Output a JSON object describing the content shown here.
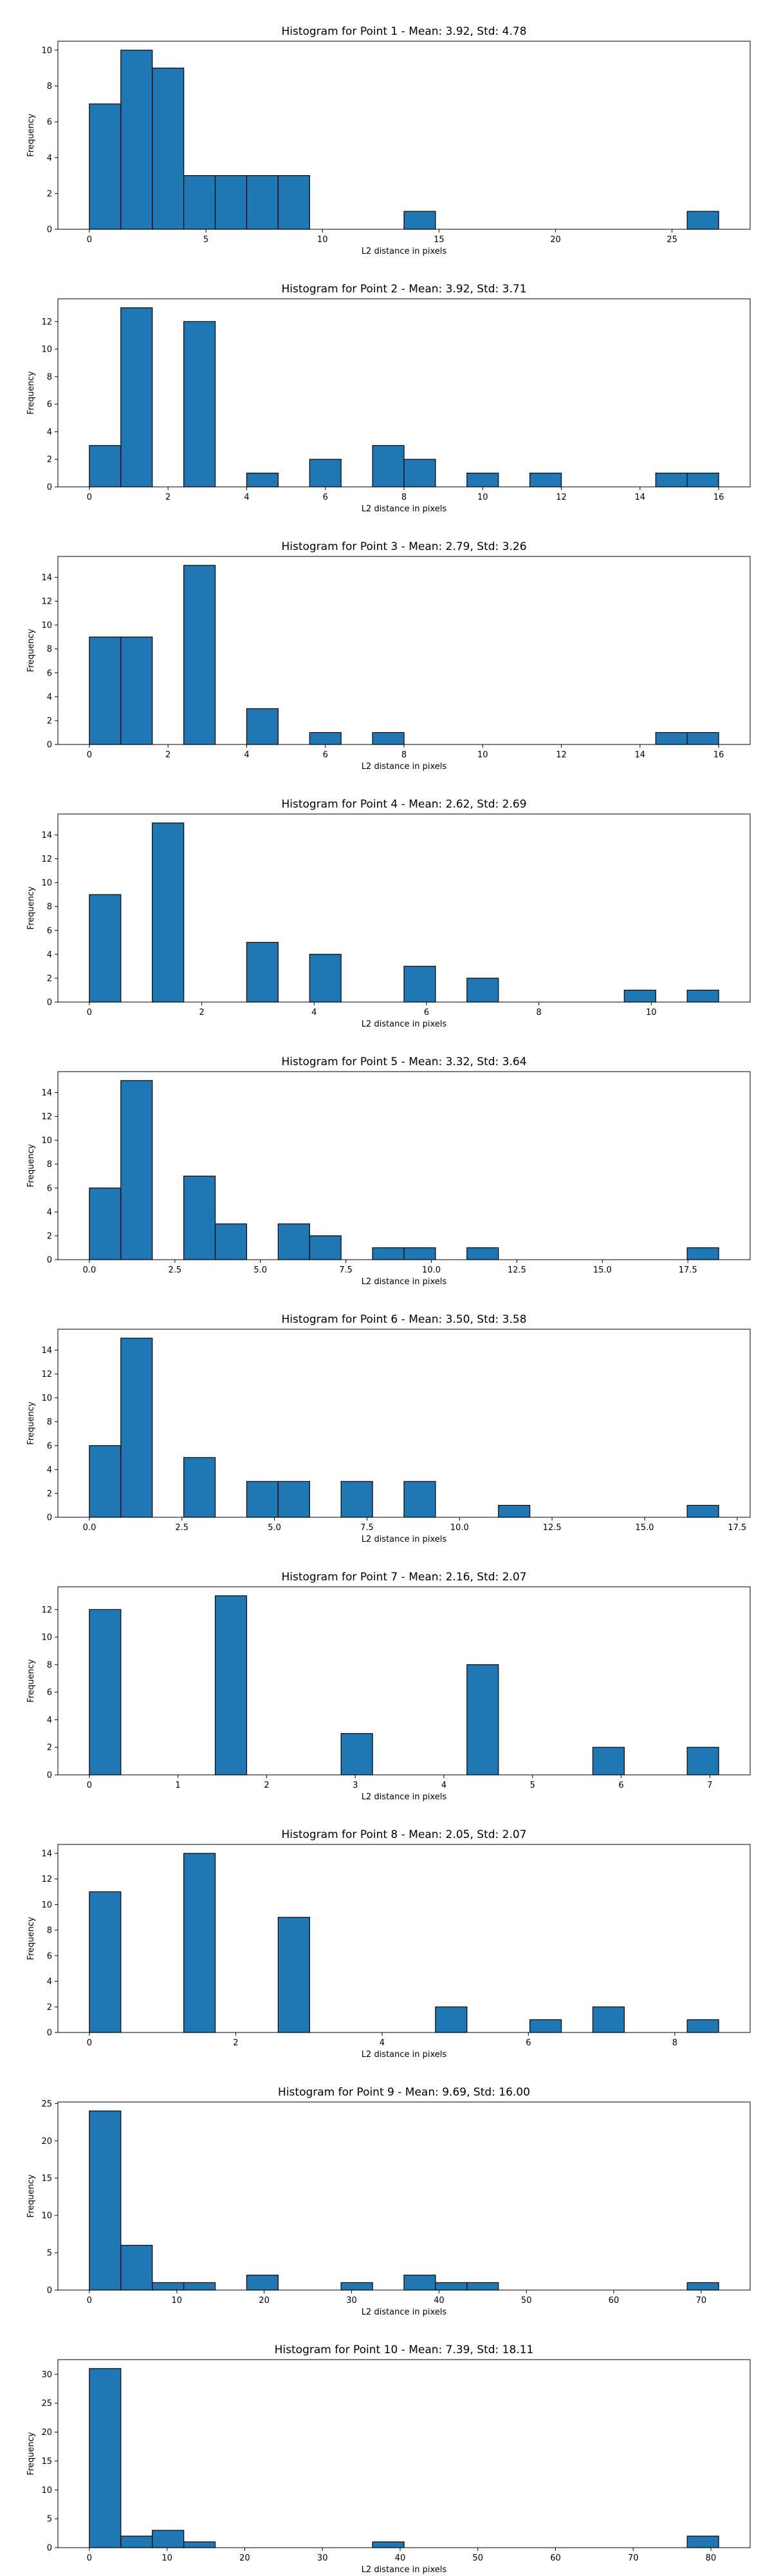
{
  "figure": {
    "background": "#ffffff"
  },
  "style": {
    "bar_fill": "#1f77b4",
    "bar_edge": "#000000",
    "axis_color": "#000000",
    "grid": false
  },
  "chart_data": [
    {
      "type": "bar",
      "title": "Histogram for Point 1 - Mean: 3.92, Std: 4.78",
      "xlabel": "L2 distance in pixels",
      "ylabel": "Frequency",
      "xlim": [
        -1.35,
        28.35
      ],
      "ylim": [
        0,
        10.5
      ],
      "xticks": [
        0,
        5,
        10,
        15,
        20,
        25
      ],
      "yticks": [
        0,
        2,
        4,
        6,
        8,
        10
      ],
      "bin_edges": [
        0,
        1.35,
        2.7,
        4.05,
        5.4,
        6.75,
        8.1,
        9.45,
        10.8,
        12.15,
        13.5,
        14.85,
        16.2,
        17.55,
        18.9,
        20.25,
        21.6,
        22.95,
        24.3,
        25.65,
        27.0
      ],
      "values": [
        7,
        10,
        9,
        3,
        3,
        3,
        3,
        0,
        0,
        0,
        1,
        0,
        0,
        0,
        0,
        0,
        0,
        0,
        0,
        1
      ]
    },
    {
      "type": "bar",
      "title": "Histogram for Point 2 - Mean: 3.92, Std: 3.71",
      "xlabel": "L2 distance in pixels",
      "ylabel": "Frequency",
      "xlim": [
        -0.8,
        16.8
      ],
      "ylim": [
        0,
        13.65
      ],
      "xticks": [
        0,
        2,
        4,
        6,
        8,
        10,
        12,
        14,
        16
      ],
      "yticks": [
        0,
        2,
        4,
        6,
        8,
        10,
        12
      ],
      "bin_edges": [
        0,
        0.8,
        1.6,
        2.4,
        3.2,
        4.0,
        4.8,
        5.6,
        6.4,
        7.2,
        8.0,
        8.8,
        9.6,
        10.4,
        11.2,
        12.0,
        12.8,
        13.6,
        14.4,
        15.2,
        16.0
      ],
      "values": [
        3,
        13,
        0,
        12,
        0,
        1,
        0,
        2,
        0,
        3,
        2,
        0,
        1,
        0,
        1,
        0,
        0,
        0,
        1,
        1
      ]
    },
    {
      "type": "bar",
      "title": "Histogram for Point 3 - Mean: 2.79, Std: 3.26",
      "xlabel": "L2 distance in pixels",
      "ylabel": "Frequency",
      "xlim": [
        -0.8,
        16.8
      ],
      "ylim": [
        0,
        15.75
      ],
      "xticks": [
        0,
        2,
        4,
        6,
        8,
        10,
        12,
        14,
        16
      ],
      "yticks": [
        0,
        2,
        4,
        6,
        8,
        10,
        12,
        14
      ],
      "bin_edges": [
        0,
        0.8,
        1.6,
        2.4,
        3.2,
        4.0,
        4.8,
        5.6,
        6.4,
        7.2,
        8.0,
        8.8,
        9.6,
        10.4,
        11.2,
        12.0,
        12.8,
        13.6,
        14.4,
        15.2,
        16.0
      ],
      "values": [
        9,
        9,
        0,
        15,
        0,
        3,
        0,
        1,
        0,
        1,
        0,
        0,
        0,
        0,
        0,
        0,
        0,
        0,
        1,
        1
      ]
    },
    {
      "type": "bar",
      "title": "Histogram for Point 4 - Mean: 2.62, Std: 2.69",
      "xlabel": "L2 distance in pixels",
      "ylabel": "Frequency",
      "xlim": [
        -0.56,
        11.76
      ],
      "ylim": [
        0,
        15.75
      ],
      "xticks": [
        0,
        2,
        4,
        6,
        8,
        10
      ],
      "yticks": [
        0,
        2,
        4,
        6,
        8,
        10,
        12,
        14
      ],
      "bin_edges": [
        0,
        0.56,
        1.12,
        1.68,
        2.24,
        2.8,
        3.36,
        3.92,
        4.48,
        5.04,
        5.6,
        6.16,
        6.72,
        7.28,
        7.84,
        8.4,
        8.96,
        9.52,
        10.08,
        10.64,
        11.2
      ],
      "values": [
        9,
        0,
        15,
        0,
        0,
        5,
        0,
        4,
        0,
        0,
        3,
        0,
        2,
        0,
        0,
        0,
        0,
        1,
        0,
        1
      ]
    },
    {
      "type": "bar",
      "title": "Histogram for Point 5 - Mean: 3.32, Std: 3.64",
      "xlabel": "L2 distance in pixels",
      "ylabel": "Frequency",
      "xlim": [
        -0.92,
        19.32
      ],
      "ylim": [
        0,
        15.75
      ],
      "xticks": [
        0.0,
        2.5,
        5.0,
        7.5,
        10.0,
        12.5,
        15.0,
        17.5
      ],
      "xtick_labels": [
        "0.0",
        "2.5",
        "5.0",
        "7.5",
        "10.0",
        "12.5",
        "15.0",
        "17.5"
      ],
      "yticks": [
        0,
        2,
        4,
        6,
        8,
        10,
        12,
        14
      ],
      "bin_edges": [
        0,
        0.92,
        1.84,
        2.76,
        3.68,
        4.6,
        5.52,
        6.44,
        7.36,
        8.28,
        9.2,
        10.12,
        11.04,
        11.96,
        12.88,
        13.8,
        14.72,
        15.64,
        16.56,
        17.48,
        18.4
      ],
      "values": [
        6,
        15,
        0,
        7,
        3,
        0,
        3,
        2,
        0,
        1,
        1,
        0,
        1,
        0,
        0,
        0,
        0,
        0,
        0,
        1
      ]
    },
    {
      "type": "bar",
      "title": "Histogram for Point 6 - Mean: 3.50, Std: 3.58",
      "xlabel": "L2 distance in pixels",
      "ylabel": "Frequency",
      "xlim": [
        -0.85,
        17.85
      ],
      "ylim": [
        0,
        15.75
      ],
      "xticks": [
        0.0,
        2.5,
        5.0,
        7.5,
        10.0,
        12.5,
        15.0,
        17.5
      ],
      "xtick_labels": [
        "0.0",
        "2.5",
        "5.0",
        "7.5",
        "10.0",
        "12.5",
        "15.0",
        "17.5"
      ],
      "yticks": [
        0,
        2,
        4,
        6,
        8,
        10,
        12,
        14
      ],
      "bin_edges": [
        0,
        0.85,
        1.7,
        2.55,
        3.4,
        4.25,
        5.1,
        5.95,
        6.8,
        7.65,
        8.5,
        9.35,
        10.2,
        11.05,
        11.9,
        12.75,
        13.6,
        14.45,
        15.3,
        16.15,
        17.0
      ],
      "values": [
        6,
        15,
        0,
        5,
        0,
        3,
        3,
        0,
        3,
        0,
        3,
        0,
        0,
        1,
        0,
        0,
        0,
        0,
        0,
        1
      ]
    },
    {
      "type": "bar",
      "title": "Histogram for Point 7 - Mean: 2.16, Std: 2.07",
      "xlabel": "L2 distance in pixels",
      "ylabel": "Frequency",
      "xlim": [
        -0.355,
        7.455
      ],
      "ylim": [
        0,
        13.65
      ],
      "xticks": [
        0,
        1,
        2,
        3,
        4,
        5,
        6,
        7
      ],
      "yticks": [
        0,
        2,
        4,
        6,
        8,
        10,
        12
      ],
      "bin_edges": [
        0,
        0.355,
        0.71,
        1.065,
        1.42,
        1.775,
        2.13,
        2.485,
        2.84,
        3.195,
        3.55,
        3.905,
        4.26,
        4.615,
        4.97,
        5.325,
        5.68,
        6.035,
        6.39,
        6.745,
        7.1
      ],
      "values": [
        12,
        0,
        0,
        0,
        13,
        0,
        0,
        0,
        3,
        0,
        0,
        0,
        8,
        0,
        0,
        0,
        2,
        0,
        0,
        2
      ]
    },
    {
      "type": "bar",
      "title": "Histogram for Point 8 - Mean: 2.05, Std: 2.07",
      "xlabel": "L2 distance in pixels",
      "ylabel": "Frequency",
      "xlim": [
        -0.43,
        9.03
      ],
      "ylim": [
        0,
        14.7
      ],
      "xticks": [
        0,
        2,
        4,
        6,
        8
      ],
      "yticks": [
        0,
        2,
        4,
        6,
        8,
        10,
        12,
        14
      ],
      "bin_edges": [
        0,
        0.43,
        0.86,
        1.29,
        1.72,
        2.15,
        2.58,
        3.01,
        3.44,
        3.87,
        4.3,
        4.73,
        5.16,
        5.59,
        6.02,
        6.45,
        6.88,
        7.31,
        7.74,
        8.17,
        8.6
      ],
      "values": [
        11,
        0,
        0,
        14,
        0,
        0,
        9,
        0,
        0,
        0,
        0,
        2,
        0,
        0,
        1,
        0,
        2,
        0,
        0,
        1
      ]
    },
    {
      "type": "bar",
      "title": "Histogram for Point 9 - Mean: 9.69, Std: 16.00",
      "xlabel": "L2 distance in pixels",
      "ylabel": "Frequency",
      "xlim": [
        -3.6,
        75.6
      ],
      "ylim": [
        0,
        25.2
      ],
      "xticks": [
        0,
        10,
        20,
        30,
        40,
        50,
        60,
        70
      ],
      "yticks": [
        0,
        5,
        10,
        15,
        20,
        25
      ],
      "bin_edges": [
        0,
        3.6,
        7.2,
        10.8,
        14.4,
        18.0,
        21.6,
        25.2,
        28.8,
        32.4,
        36.0,
        39.6,
        43.2,
        46.8,
        50.4,
        54.0,
        57.6,
        61.2,
        64.8,
        68.4,
        72.0
      ],
      "values": [
        24,
        6,
        1,
        1,
        0,
        2,
        0,
        0,
        1,
        0,
        2,
        1,
        1,
        0,
        0,
        0,
        0,
        0,
        0,
        1
      ]
    },
    {
      "type": "bar",
      "title": "Histogram for Point 10 - Mean: 7.39, Std: 18.11",
      "xlabel": "L2 distance in pixels",
      "ylabel": "Frequency",
      "xlim": [
        -4.05,
        85.05
      ],
      "ylim": [
        0,
        32.55
      ],
      "xticks": [
        0,
        10,
        20,
        30,
        40,
        50,
        60,
        70,
        80
      ],
      "yticks": [
        0,
        5,
        10,
        15,
        20,
        25,
        30
      ],
      "bin_edges": [
        0,
        4.05,
        8.1,
        12.15,
        16.2,
        20.25,
        24.3,
        28.35,
        32.4,
        36.45,
        40.5,
        44.55,
        48.6,
        52.65,
        56.7,
        60.75,
        64.8,
        68.85,
        72.9,
        76.95,
        81.0
      ],
      "values": [
        31,
        2,
        3,
        1,
        0,
        0,
        0,
        0,
        0,
        1,
        0,
        0,
        0,
        0,
        0,
        0,
        0,
        0,
        0,
        2
      ]
    }
  ]
}
